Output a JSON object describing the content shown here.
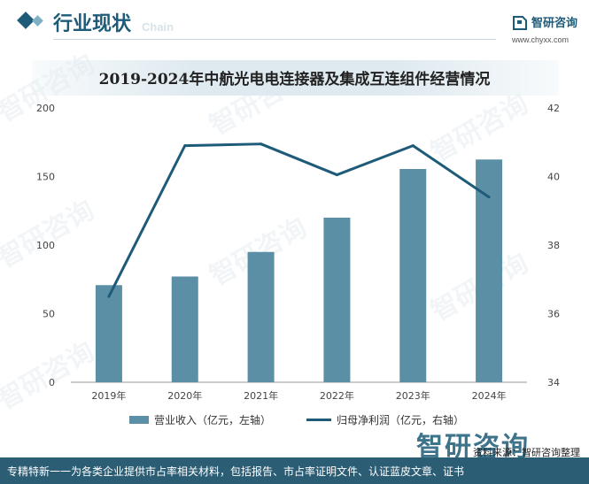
{
  "header": {
    "section_title": "行业现状",
    "section_sub": "Chain",
    "brand_name": "智研咨询",
    "brand_url": "www.chyxx.com"
  },
  "watermark_text": "智研咨询",
  "colors": {
    "bar": "#5b8fa6",
    "line": "#1d5b78",
    "footer": "#2b5d74",
    "accent": "#1d5b78"
  },
  "chart_data": {
    "type": "bar",
    "title": "2019-2024年中航光电电连接器及集成互连组件经营情况",
    "categories": [
      "2019年",
      "2020年",
      "2021年",
      "2022年",
      "2023年",
      "2024年"
    ],
    "series": [
      {
        "name": "营业收入（亿元，左轴）",
        "type": "bar",
        "axis": "left",
        "values": [
          70.8,
          77.1,
          95.0,
          120.0,
          155.5,
          162.4
        ]
      },
      {
        "name": "归母净利润（亿元，右轴）",
        "type": "line",
        "axis": "right",
        "values": [
          36.5,
          40.9,
          40.95,
          40.05,
          40.9,
          39.4
        ]
      }
    ],
    "y_left": {
      "min": 0,
      "max": 200,
      "ticks": [
        0,
        50,
        100,
        150,
        200
      ]
    },
    "y_right": {
      "min": 34,
      "max": 42,
      "ticks": [
        34,
        36,
        38,
        40,
        42
      ]
    },
    "grid": false,
    "legend_position": "bottom"
  },
  "source_text": "资料来源：智研咨询整理",
  "footer_text": "专精特新一一为各类企业提供市占率相关材料，包括报告、市占率证明文件、认证蓝皮文章、证书"
}
